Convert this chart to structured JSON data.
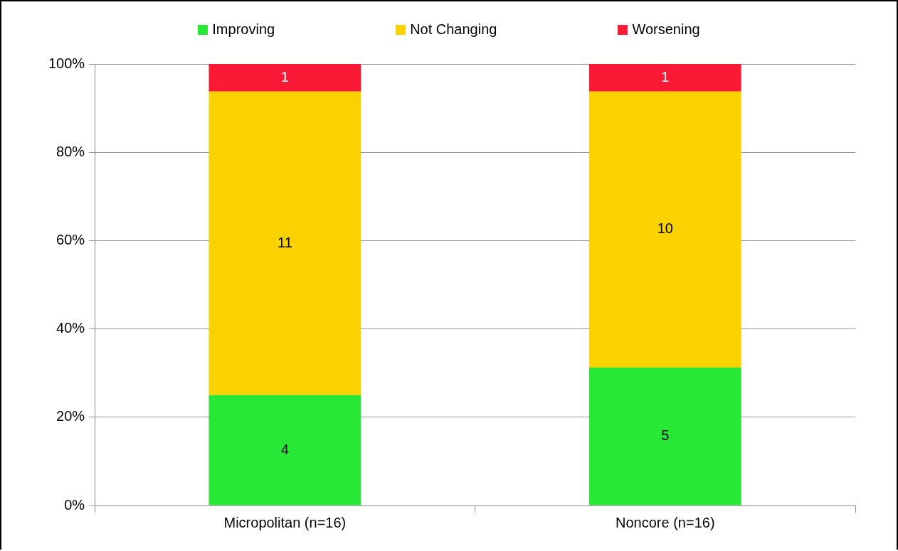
{
  "chart_data": {
    "type": "bar",
    "stacked": true,
    "categories": [
      "Micropolitan (n=16)",
      "Noncore (n=16)"
    ],
    "series": [
      {
        "name": "Improving",
        "color": "#27e835",
        "values": [
          25,
          31.25
        ]
      },
      {
        "name": "Not Changing",
        "color": "#f9d200",
        "values": [
          68.75,
          62.5
        ]
      },
      {
        "name": "Worsening",
        "color": "#fb1a35",
        "values": [
          6.25,
          6.25
        ]
      }
    ],
    "annotations": [
      "4",
      "11",
      "1",
      "5",
      "10",
      "1"
    ],
    "ylim": [
      0,
      100
    ],
    "yticks": [
      {
        "value": 0,
        "label": "0%"
      },
      {
        "value": 20,
        "label": "20%"
      },
      {
        "value": 40,
        "label": "40%"
      },
      {
        "value": 60,
        "label": "60%"
      },
      {
        "value": 80,
        "label": "80%"
      },
      {
        "value": 100,
        "label": "100%"
      }
    ],
    "grid": "y",
    "legend": "top"
  }
}
